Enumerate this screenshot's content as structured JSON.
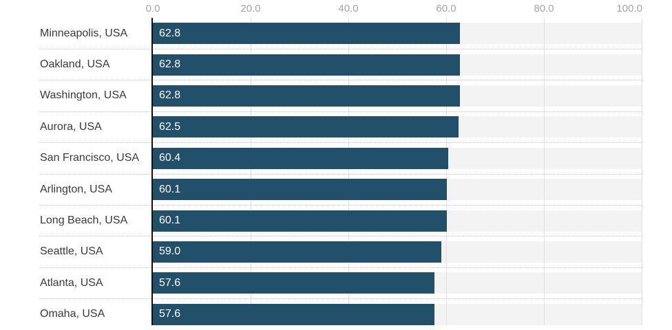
{
  "chart_data": {
    "type": "bar",
    "orientation": "horizontal",
    "title": "",
    "xlabel": "",
    "ylabel": "",
    "categories": [
      "Minneapolis, USA",
      "Oakland, USA",
      "Washington, USA",
      "Aurora, USA",
      "San Francisco, USA",
      "Arlington, USA",
      "Long Beach, USA",
      "Seattle, USA",
      "Atlanta, USA",
      "Omaha, USA"
    ],
    "values": [
      62.8,
      62.8,
      62.8,
      62.5,
      60.4,
      60.1,
      60.1,
      59.0,
      57.6,
      57.6
    ],
    "value_labels": [
      "62.8",
      "62.8",
      "62.8",
      "62.5",
      "60.4",
      "60.1",
      "60.1",
      "59.0",
      "57.6",
      "57.6"
    ],
    "xlim": [
      0,
      100
    ],
    "x_ticks": [
      {
        "value": 0,
        "label": "0.0"
      },
      {
        "value": 20,
        "label": "20.0"
      },
      {
        "value": 40,
        "label": "40.0"
      },
      {
        "value": 60,
        "label": "60.0"
      },
      {
        "value": 80,
        "label": "80.0"
      },
      {
        "value": 100,
        "label": "100.0"
      }
    ],
    "grid": true,
    "legend": "none",
    "axis_position": "top",
    "colors": {
      "bar": "#224f6a",
      "bar_track": "#f3f3f3",
      "gridline": "#e1e1e1",
      "row_separator": "#c9c9c9",
      "axis_line": "#111111",
      "tick_text": "#a3a3a3",
      "category_text": "#3a3a3a",
      "value_text": "#ffffff",
      "background": "#ffffff"
    }
  }
}
